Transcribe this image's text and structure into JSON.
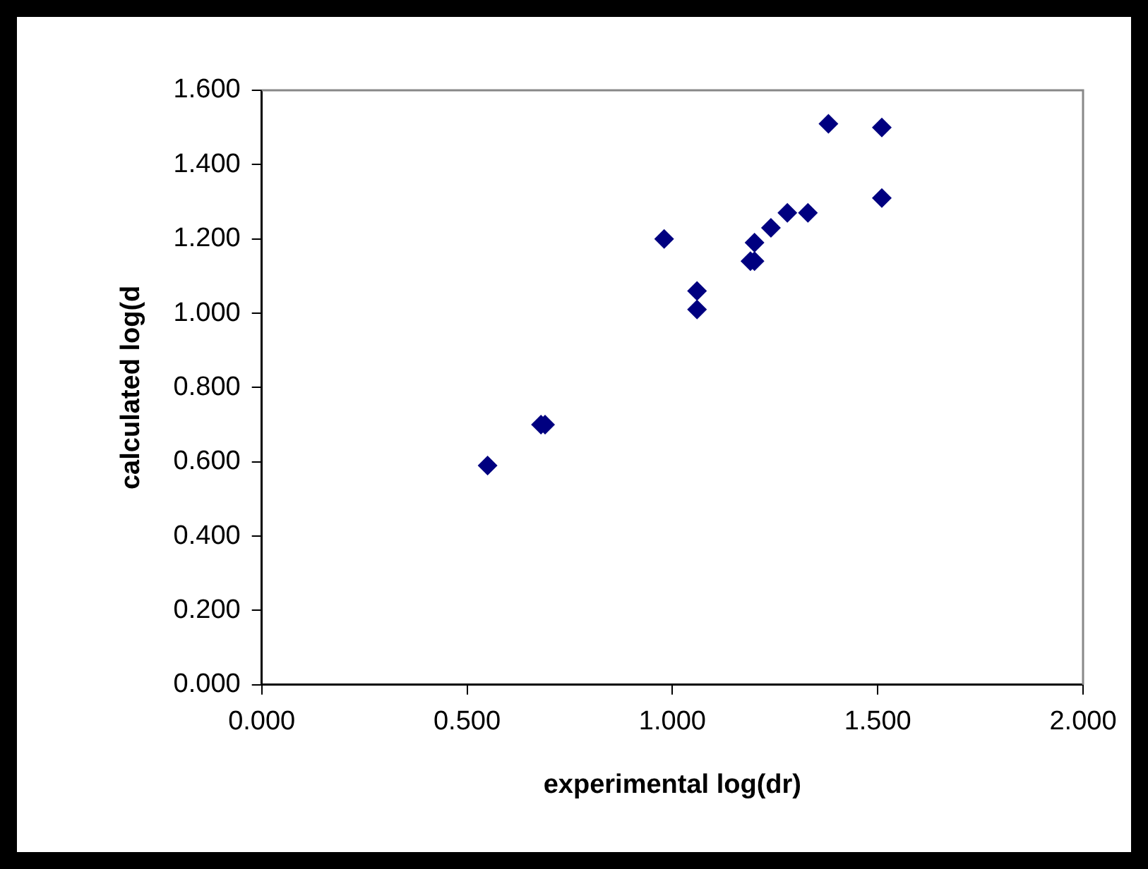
{
  "chart_data": {
    "type": "scatter",
    "xlabel": "experimental log(dr)",
    "ylabel": "calculated log(d",
    "series": [
      {
        "color": "#000080",
        "x": [
          0.55,
          0.68,
          0.69,
          0.98,
          1.06,
          1.06,
          1.2,
          1.19,
          1.2,
          1.24,
          1.28,
          1.33,
          1.38,
          1.51,
          1.51
        ],
        "values": [
          0.59,
          0.7,
          0.7,
          1.2,
          1.06,
          1.01,
          1.19,
          1.14,
          1.14,
          1.23,
          1.27,
          1.27,
          1.51,
          1.5,
          1.31
        ]
      }
    ],
    "marker": "diamond",
    "xlim": [
      0,
      2
    ],
    "xticks": [
      {
        "value": 0,
        "label": "0.000"
      },
      {
        "value": 0.5,
        "label": "0.500"
      },
      {
        "value": 1,
        "label": "1.000"
      },
      {
        "value": 1.5,
        "label": "1.500"
      },
      {
        "value": 2,
        "label": "2.000"
      }
    ],
    "ylim": [
      0,
      1.6
    ],
    "yticks": [
      {
        "value": 0,
        "label": "0.000"
      },
      {
        "value": 0.2,
        "label": "0.200"
      },
      {
        "value": 0.4,
        "label": "0.400"
      },
      {
        "value": 0.6,
        "label": "0.600"
      },
      {
        "value": 0.8,
        "label": "0.800"
      },
      {
        "value": 1,
        "label": "1.000"
      },
      {
        "value": 1.2,
        "label": "1.200"
      },
      {
        "value": 1.4,
        "label": "1.400"
      },
      {
        "value": 1.6,
        "label": "1.600"
      }
    ],
    "grid": false,
    "legend": false
  }
}
